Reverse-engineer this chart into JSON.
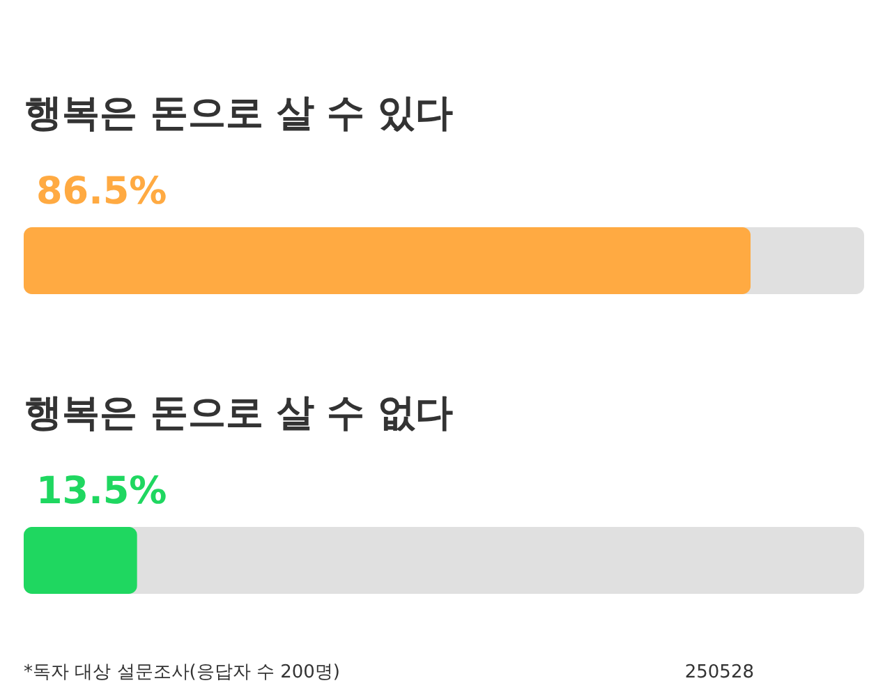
{
  "chart_data": {
    "type": "bar",
    "orientation": "horizontal",
    "categories": [
      "행복은 돈으로 살 수 있다",
      "행복은 돈으로 살 수 없다"
    ],
    "values": [
      86.5,
      13.5
    ],
    "colors": [
      "#ffaa42",
      "#1fd760"
    ],
    "value_labels": [
      "86.5%",
      "13.5%"
    ],
    "xlim": [
      0,
      100
    ],
    "tick_labels": "y",
    "annotations": [
      "*독자 대상 설문조사(응답자 수 200명)",
      "250528"
    ]
  }
}
